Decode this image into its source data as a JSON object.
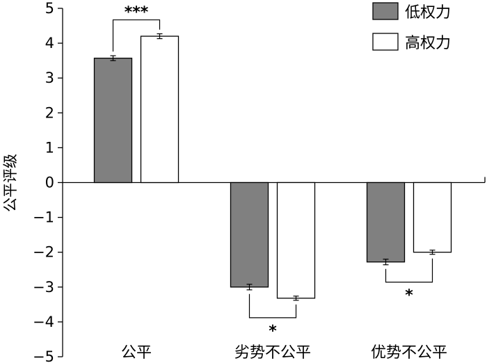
{
  "chart_data": {
    "type": "bar",
    "categories": [
      "公平",
      "劣势不公平",
      "优势不公平"
    ],
    "series": [
      {
        "name": "低权力",
        "values": [
          3.57,
          -3.0,
          -2.28
        ],
        "errors": [
          0.07,
          0.08,
          0.08
        ],
        "color": "#808080"
      },
      {
        "name": "高权力",
        "values": [
          4.2,
          -3.32,
          -2.0
        ],
        "errors": [
          0.07,
          0.06,
          0.06
        ],
        "color": "#ffffff"
      }
    ],
    "ylabel": "公平评级",
    "ylim": [
      -5,
      5
    ],
    "yticks": [
      5,
      4,
      3,
      2,
      1,
      0,
      -1,
      -2,
      -3,
      -4,
      -5
    ],
    "ytick_labels": [
      "5",
      "4",
      "3",
      "2",
      "1",
      "0",
      "−1",
      "−2",
      "−3",
      "−4",
      "−5"
    ],
    "significance": [
      {
        "category": 0,
        "label": "***",
        "position": "above"
      },
      {
        "category": 1,
        "label": "*",
        "position": "below"
      },
      {
        "category": 2,
        "label": "*",
        "position": "below"
      }
    ],
    "legend_position": "top-right",
    "grid": false
  }
}
